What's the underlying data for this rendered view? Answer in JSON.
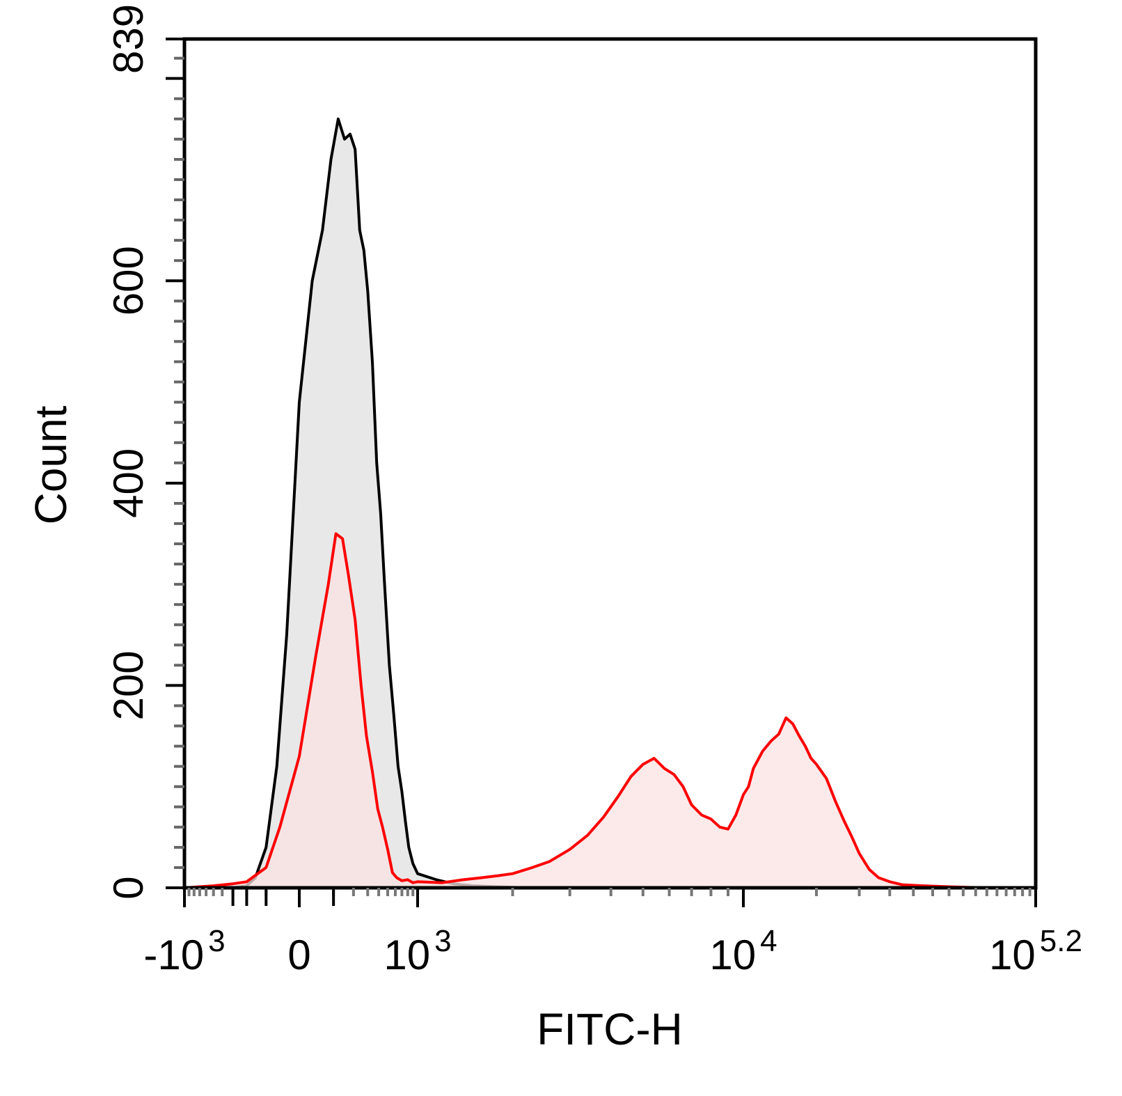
{
  "chart_data": {
    "type": "area",
    "xlabel": "FITC-H",
    "ylabel": "Count",
    "x_scale": "biexponential",
    "x_tick_labels": [
      {
        "value": -1000,
        "base": "-10",
        "exp": "3"
      },
      {
        "value": 0,
        "base": "0",
        "exp": ""
      },
      {
        "value": 1000,
        "base": "10",
        "exp": "3"
      },
      {
        "value": 10000,
        "base": "10",
        "exp": "4"
      },
      {
        "value": 158489,
        "base": "10",
        "exp": "5.2"
      }
    ],
    "y_tick_labels": [
      "0",
      "200",
      "400",
      "600",
      "839"
    ],
    "y_ticks": [
      0,
      200,
      400,
      600,
      839
    ],
    "xlim": [
      -1000,
      158489
    ],
    "ylim": [
      0,
      839
    ],
    "grid": false,
    "legend": "none",
    "series": [
      {
        "color": "#000000",
        "fill": "#e8e8e8",
        "points": [
          [
            -1000,
            0
          ],
          [
            -300,
            0
          ],
          [
            -200,
            2
          ],
          [
            -150,
            10
          ],
          [
            -100,
            40
          ],
          [
            -60,
            120
          ],
          [
            -30,
            250
          ],
          [
            0,
            480
          ],
          [
            30,
            600
          ],
          [
            60,
            650
          ],
          [
            90,
            720
          ],
          [
            120,
            760
          ],
          [
            150,
            740
          ],
          [
            180,
            745
          ],
          [
            210,
            730
          ],
          [
            240,
            650
          ],
          [
            270,
            630
          ],
          [
            300,
            590
          ],
          [
            340,
            520
          ],
          [
            380,
            420
          ],
          [
            420,
            370
          ],
          [
            460,
            305
          ],
          [
            520,
            220
          ],
          [
            580,
            170
          ],
          [
            640,
            120
          ],
          [
            700,
            95
          ],
          [
            760,
            65
          ],
          [
            820,
            40
          ],
          [
            900,
            24
          ],
          [
            1000,
            14
          ],
          [
            1150,
            8
          ],
          [
            1300,
            4
          ],
          [
            1500,
            2
          ],
          [
            1800,
            1
          ],
          [
            2200,
            0
          ],
          [
            158489,
            0
          ]
        ]
      },
      {
        "color": "#ff0000",
        "fill": "#fbe3e3",
        "points": [
          [
            -1000,
            0
          ],
          [
            -500,
            2
          ],
          [
            -300,
            4
          ],
          [
            -200,
            6
          ],
          [
            -100,
            20
          ],
          [
            -50,
            60
          ],
          [
            0,
            130
          ],
          [
            40,
            230
          ],
          [
            80,
            300
          ],
          [
            110,
            350
          ],
          [
            140,
            345
          ],
          [
            170,
            310
          ],
          [
            210,
            265
          ],
          [
            250,
            200
          ],
          [
            290,
            150
          ],
          [
            340,
            115
          ],
          [
            390,
            78
          ],
          [
            440,
            60
          ],
          [
            500,
            38
          ],
          [
            560,
            15
          ],
          [
            620,
            10
          ],
          [
            700,
            7
          ],
          [
            800,
            8
          ],
          [
            900,
            5
          ],
          [
            1000,
            6
          ],
          [
            1200,
            5
          ],
          [
            1400,
            8
          ],
          [
            1600,
            10
          ],
          [
            1800,
            12
          ],
          [
            2000,
            14
          ],
          [
            2300,
            20
          ],
          [
            2600,
            26
          ],
          [
            3000,
            38
          ],
          [
            3400,
            52
          ],
          [
            3800,
            70
          ],
          [
            4200,
            90
          ],
          [
            4600,
            110
          ],
          [
            5000,
            122
          ],
          [
            5400,
            128
          ],
          [
            5800,
            118
          ],
          [
            6200,
            112
          ],
          [
            6600,
            100
          ],
          [
            7000,
            82
          ],
          [
            7500,
            72
          ],
          [
            8000,
            68
          ],
          [
            8500,
            60
          ],
          [
            9000,
            58
          ],
          [
            9500,
            72
          ],
          [
            10000,
            92
          ],
          [
            10500,
            100
          ],
          [
            11000,
            118
          ],
          [
            12000,
            135
          ],
          [
            13000,
            145
          ],
          [
            14000,
            152
          ],
          [
            15000,
            168
          ],
          [
            16000,
            162
          ],
          [
            17000,
            150
          ],
          [
            18000,
            140
          ],
          [
            19000,
            128
          ],
          [
            20000,
            122
          ],
          [
            22000,
            108
          ],
          [
            24000,
            85
          ],
          [
            26000,
            66
          ],
          [
            28000,
            50
          ],
          [
            30000,
            34
          ],
          [
            33000,
            18
          ],
          [
            36000,
            10
          ],
          [
            40000,
            6
          ],
          [
            45000,
            3
          ],
          [
            55000,
            2
          ],
          [
            70000,
            1
          ],
          [
            100000,
            0
          ],
          [
            158489,
            0
          ]
        ]
      }
    ]
  }
}
